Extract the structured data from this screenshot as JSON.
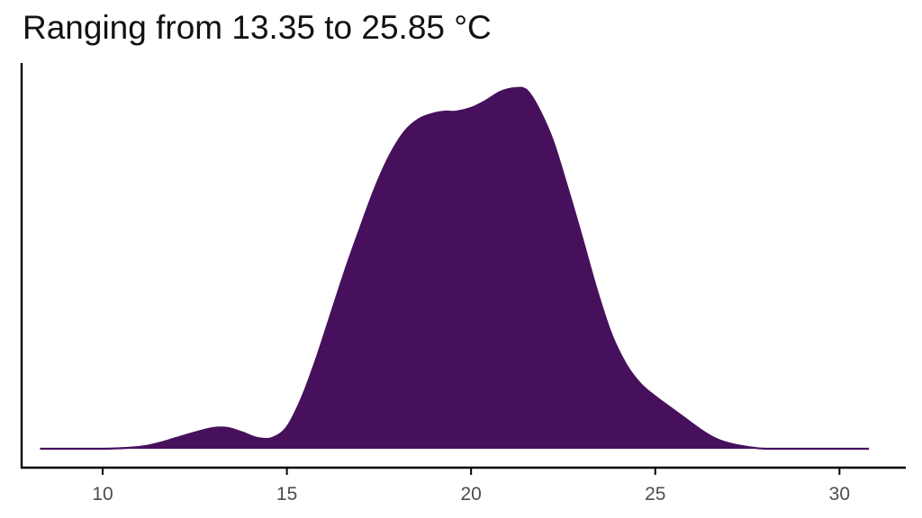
{
  "chart_data": {
    "type": "area",
    "title": "Ranging from 13.35 to 25.85 °C",
    "xlabel": "",
    "ylabel": "",
    "xlim": [
      7.8,
      31.8
    ],
    "ylim": [
      0,
      0.205
    ],
    "x_ticks": [
      10,
      15,
      20,
      25,
      30
    ],
    "x_tick_labels": [
      "10",
      "15",
      "20",
      "25",
      "30"
    ],
    "grid": false,
    "legend": "none",
    "fill_color": "#47105C",
    "series": [
      {
        "x": [
          8.3,
          10,
          11,
          11.5,
          12,
          12.5,
          13,
          13.4,
          13.8,
          14.2,
          14.6,
          15,
          15.4,
          15.8,
          16.2,
          16.6,
          17,
          17.4,
          17.8,
          18.2,
          18.6,
          19,
          19.3,
          19.6,
          20,
          20.4,
          20.8,
          21.2,
          21.5,
          21.8,
          22.2,
          22.6,
          23,
          23.4,
          23.8,
          24.2,
          24.6,
          25,
          25.4,
          25.8,
          26.2,
          26.6,
          27,
          27.5,
          28,
          29,
          30,
          30.8
        ],
        "y": [
          0,
          0,
          0.001,
          0.003,
          0.006,
          0.009,
          0.0115,
          0.0115,
          0.009,
          0.006,
          0.006,
          0.012,
          0.028,
          0.05,
          0.075,
          0.1,
          0.123,
          0.145,
          0.163,
          0.176,
          0.183,
          0.186,
          0.187,
          0.187,
          0.189,
          0.193,
          0.198,
          0.2,
          0.199,
          0.19,
          0.172,
          0.146,
          0.118,
          0.089,
          0.064,
          0.047,
          0.036,
          0.029,
          0.023,
          0.017,
          0.011,
          0.006,
          0.003,
          0.001,
          0,
          0,
          0,
          0
        ]
      }
    ]
  }
}
